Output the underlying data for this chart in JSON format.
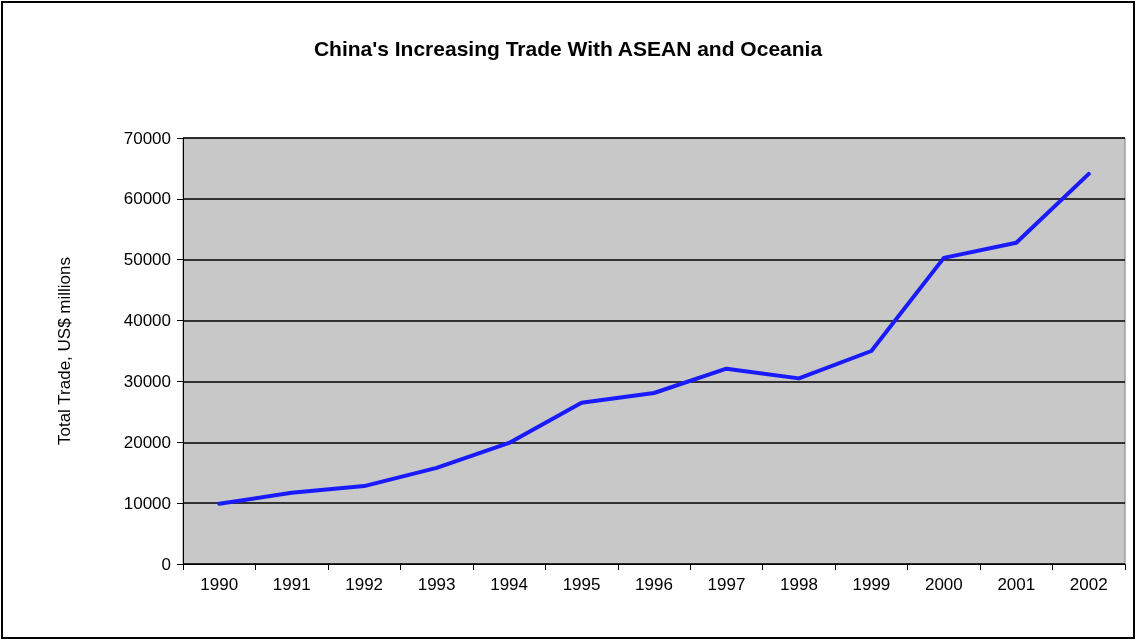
{
  "chart_data": {
    "type": "line",
    "title": "China's Increasing Trade With ASEAN and Oceania",
    "ylabel": "Total Trade, US$ millions",
    "categories": [
      "1990",
      "1991",
      "1992",
      "1993",
      "1994",
      "1995",
      "1996",
      "1997",
      "1998",
      "1999",
      "2000",
      "2001",
      "2002"
    ],
    "series": [
      {
        "color": "#1a1aff",
        "values": [
          9900,
          11700,
          12800,
          15800,
          19900,
          26500,
          28100,
          32100,
          30500,
          35000,
          50300,
          52800,
          64100
        ]
      }
    ],
    "ylim": [
      0,
      70000
    ],
    "yticks": [
      0,
      10000,
      20000,
      30000,
      40000,
      50000,
      60000,
      70000
    ],
    "grid": "y",
    "marker": "none",
    "line_style": "solid"
  }
}
